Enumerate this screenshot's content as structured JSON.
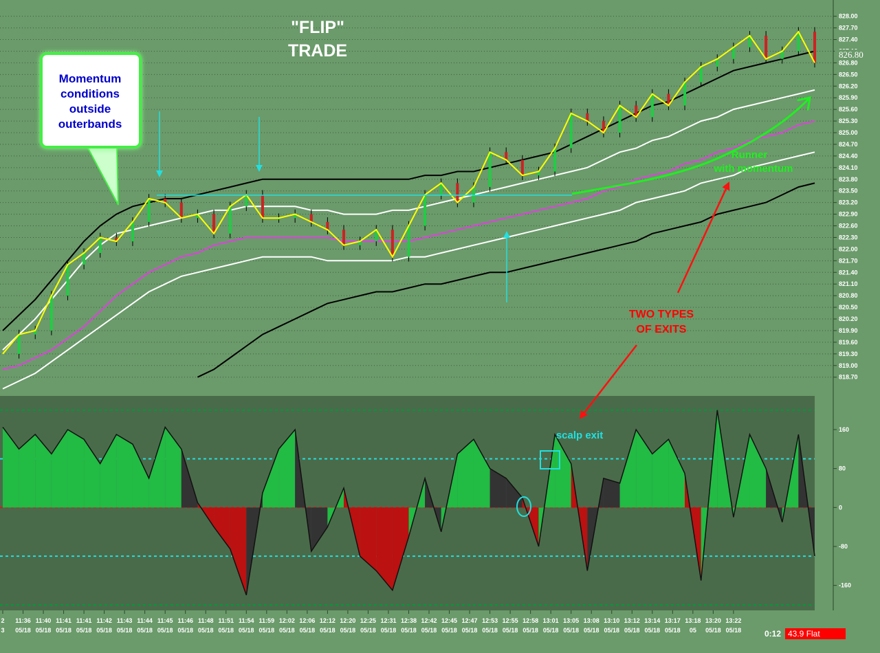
{
  "chart_data": [
    {
      "type": "line",
      "panel": "price",
      "title": "\"FLIP\" TRADE",
      "title_lines": [
        "\"FLIP\"",
        "TRADE"
      ],
      "xlabel": "",
      "ylabel": "",
      "ylim": [
        818.5,
        828.1
      ],
      "y_ticks": [
        828.0,
        827.7,
        827.4,
        827.1,
        826.8,
        826.5,
        826.2,
        825.9,
        825.6,
        825.3,
        825.0,
        824.7,
        824.4,
        824.1,
        823.8,
        823.5,
        823.2,
        822.9,
        822.6,
        822.3,
        822.0,
        821.7,
        821.4,
        821.1,
        820.8,
        820.5,
        820.2,
        819.9,
        819.6,
        819.3,
        819.0,
        818.7
      ],
      "y_tick_labels": [
        "828.00",
        "827.70",
        "827.40",
        "827.10",
        "826.80",
        "826.50",
        "826.20",
        "825.90",
        "825.60",
        "825.30",
        "825.00",
        "824.70",
        "824.40",
        "824.10",
        "823.80",
        "823.50",
        "823.20",
        "822.90",
        "822.60",
        "822.30",
        "822.00",
        "821.70",
        "821.40",
        "821.10",
        "820.80",
        "820.50",
        "820.20",
        "819.90",
        "819.60",
        "819.30",
        "819.00",
        "818.70"
      ],
      "last_price_label": "826.80",
      "grid": true,
      "x": [
        0,
        4,
        8,
        12,
        16,
        20,
        24,
        28,
        32,
        36,
        40,
        44,
        48,
        52,
        56,
        60,
        64,
        68,
        72,
        76,
        80,
        84,
        88,
        92,
        96,
        100,
        104,
        108,
        112,
        116,
        120,
        124,
        128,
        132,
        136,
        140,
        144,
        148,
        152,
        156,
        160,
        164,
        168,
        172,
        176,
        180,
        184,
        188,
        192,
        196,
        200
      ],
      "series": [
        {
          "role": "price",
          "color": "#ffff00",
          "values": [
            819.3,
            819.8,
            819.9,
            820.8,
            821.6,
            821.9,
            822.3,
            822.2,
            822.7,
            823.3,
            823.2,
            822.8,
            822.9,
            822.4,
            823.1,
            823.4,
            822.8,
            822.8,
            822.9,
            822.7,
            822.5,
            822.1,
            822.2,
            822.5,
            821.8,
            822.6,
            823.4,
            823.7,
            823.2,
            823.6,
            824.5,
            824.3,
            823.9,
            824.0,
            824.6,
            825.5,
            825.3,
            825.0,
            825.7,
            825.4,
            826.0,
            825.7,
            826.3,
            826.7,
            826.9,
            827.2,
            827.5,
            826.9,
            827.1,
            827.6,
            826.8
          ]
        },
        {
          "role": "upper-outer-band",
          "color": "#000000",
          "values": [
            819.9,
            820.3,
            820.7,
            821.2,
            821.7,
            822.2,
            822.6,
            822.9,
            823.1,
            823.2,
            823.3,
            823.3,
            823.4,
            823.5,
            823.6,
            823.7,
            823.8,
            823.8,
            823.8,
            823.8,
            823.8,
            823.8,
            823.8,
            823.8,
            823.8,
            823.8,
            823.9,
            823.9,
            824.0,
            824.0,
            824.1,
            824.2,
            824.3,
            824.4,
            824.5,
            824.7,
            824.9,
            825.1,
            825.3,
            825.5,
            825.7,
            825.8,
            826.0,
            826.2,
            826.4,
            826.6,
            826.7,
            826.8,
            826.9,
            827.0,
            827.1
          ]
        },
        {
          "role": "upper-inner-band",
          "color": "#ffffff",
          "values": [
            819.4,
            819.8,
            820.2,
            820.7,
            821.2,
            821.7,
            822.1,
            822.4,
            822.5,
            822.6,
            822.7,
            822.8,
            822.9,
            823.0,
            823.0,
            823.1,
            823.1,
            823.1,
            823.1,
            823.0,
            823.0,
            822.9,
            822.9,
            822.9,
            823.0,
            823.0,
            823.1,
            823.2,
            823.3,
            823.4,
            823.5,
            823.6,
            823.7,
            823.8,
            823.9,
            824.0,
            824.1,
            824.3,
            824.5,
            824.6,
            824.8,
            824.9,
            825.1,
            825.3,
            825.4,
            825.6,
            825.7,
            825.8,
            825.9,
            826.0,
            826.1
          ]
        },
        {
          "role": "midline",
          "color": "#e040e0",
          "values": [
            818.9,
            819.0,
            819.2,
            819.4,
            819.7,
            820.0,
            820.4,
            820.8,
            821.1,
            821.4,
            821.6,
            821.8,
            821.9,
            822.1,
            822.2,
            822.3,
            822.3,
            822.3,
            822.3,
            822.3,
            822.3,
            822.2,
            822.2,
            822.2,
            822.2,
            822.2,
            822.3,
            822.4,
            822.5,
            822.6,
            822.7,
            822.8,
            822.9,
            823.0,
            823.1,
            823.2,
            823.3,
            823.5,
            823.6,
            823.8,
            823.9,
            824.0,
            824.2,
            824.3,
            824.5,
            824.6,
            824.8,
            824.9,
            825.0,
            825.2,
            825.3
          ]
        },
        {
          "role": "lower-inner-band",
          "color": "#ffffff",
          "values": [
            818.4,
            818.6,
            818.8,
            819.1,
            819.4,
            819.7,
            820.0,
            820.3,
            820.6,
            820.9,
            821.1,
            821.3,
            821.4,
            821.5,
            821.6,
            821.7,
            821.8,
            821.8,
            821.8,
            821.8,
            821.7,
            821.7,
            821.7,
            821.7,
            821.7,
            821.8,
            821.8,
            821.9,
            822.0,
            822.1,
            822.2,
            822.3,
            822.4,
            822.5,
            822.6,
            822.7,
            822.8,
            822.9,
            823.0,
            823.2,
            823.3,
            823.4,
            823.5,
            823.7,
            823.8,
            823.9,
            824.1,
            824.2,
            824.3,
            824.4,
            824.5
          ]
        },
        {
          "role": "lower-outer-band",
          "color": "#000000",
          "values": [
            null,
            null,
            null,
            null,
            null,
            null,
            null,
            null,
            null,
            null,
            null,
            null,
            818.7,
            818.9,
            819.2,
            819.5,
            819.8,
            820.0,
            820.2,
            820.4,
            820.6,
            820.7,
            820.8,
            820.9,
            820.9,
            821.0,
            821.1,
            821.1,
            821.2,
            821.3,
            821.4,
            821.4,
            821.5,
            821.6,
            821.7,
            821.8,
            821.9,
            822.0,
            822.1,
            822.2,
            822.4,
            822.5,
            822.6,
            822.7,
            822.9,
            823.0,
            823.1,
            823.2,
            823.4,
            823.6,
            823.7
          ]
        }
      ],
      "x_tick_labels": [
        {
          "x": 0,
          "time": "2",
          "date": "3"
        },
        {
          "x": 5,
          "time": "11:36",
          "date": "05/18"
        },
        {
          "x": 10,
          "time": "11:40",
          "date": "05/18"
        },
        {
          "x": 15,
          "time": "11:41",
          "date": "05/18"
        },
        {
          "x": 20,
          "time": "11:41",
          "date": "05/18"
        },
        {
          "x": 25,
          "time": "11:42",
          "date": "05/18"
        },
        {
          "x": 30,
          "time": "11:43",
          "date": "05/18"
        },
        {
          "x": 35,
          "time": "11:44",
          "date": "05/18"
        },
        {
          "x": 40,
          "time": "11:45",
          "date": "05/18"
        },
        {
          "x": 45,
          "time": "11:46",
          "date": "05/18"
        },
        {
          "x": 50,
          "time": "11:48",
          "date": "05/18"
        },
        {
          "x": 55,
          "time": "11:51",
          "date": "05/18"
        },
        {
          "x": 60,
          "time": "11:54",
          "date": "05/18"
        },
        {
          "x": 65,
          "time": "11:59",
          "date": "05/18"
        },
        {
          "x": 70,
          "time": "12:02",
          "date": "05/18"
        },
        {
          "x": 75,
          "time": "12:06",
          "date": "05/18"
        },
        {
          "x": 80,
          "time": "12:12",
          "date": "05/18"
        },
        {
          "x": 85,
          "time": "12:20",
          "date": "05/18"
        },
        {
          "x": 90,
          "time": "12:25",
          "date": "05/18"
        },
        {
          "x": 95,
          "time": "12:31",
          "date": "05/18"
        },
        {
          "x": 100,
          "time": "12:38",
          "date": "05/18"
        },
        {
          "x": 105,
          "time": "12:42",
          "date": "05/18"
        },
        {
          "x": 110,
          "time": "12:45",
          "date": "05/18"
        },
        {
          "x": 115,
          "time": "12:47",
          "date": "05/18"
        },
        {
          "x": 120,
          "time": "12:53",
          "date": "05/18"
        },
        {
          "x": 125,
          "time": "12:55",
          "date": "05/18"
        },
        {
          "x": 130,
          "time": "12:58",
          "date": "05/18"
        },
        {
          "x": 135,
          "time": "13:01",
          "date": "05/18"
        },
        {
          "x": 140,
          "time": "13:05",
          "date": "05/18"
        },
        {
          "x": 145,
          "time": "13:08",
          "date": "05/18"
        },
        {
          "x": 150,
          "time": "13:10",
          "date": "05/18"
        },
        {
          "x": 155,
          "time": "13:12",
          "date": "05/18"
        },
        {
          "x": 160,
          "time": "13:14",
          "date": "05/18"
        },
        {
          "x": 165,
          "time": "13:17",
          "date": "05/18"
        },
        {
          "x": 170,
          "time": "13:18",
          "date": "05"
        },
        {
          "x": 175,
          "time": "13:20",
          "date": "05/18"
        },
        {
          "x": 180,
          "time": "13:22",
          "date": "05/18"
        }
      ],
      "annotations": [
        {
          "id": "momentum-callout",
          "lines": [
            "Momentum",
            "conditions",
            "outside",
            "outerbands"
          ],
          "color": "#0000cc"
        },
        {
          "id": "runner-label",
          "lines": [
            "Runner",
            "with momentum"
          ],
          "color": "#22ee22"
        },
        {
          "id": "two-types-label",
          "lines": [
            "TWO TYPES",
            "OF EXITS"
          ],
          "color": "#ff0000"
        }
      ],
      "resistance_level": 823.5
    },
    {
      "type": "area",
      "panel": "momentum-oscillator",
      "ylim": [
        -200,
        215
      ],
      "y_ticks": [
        160,
        80,
        0,
        -80,
        -160
      ],
      "y_tick_labels": [
        "160",
        "80",
        "0",
        "-80",
        "-160"
      ],
      "reference_lines": [
        {
          "value": 200,
          "color": "#009a3a",
          "style": "dashed"
        },
        {
          "value": 100,
          "color": "#ffffff",
          "style": "dashed-cyan"
        },
        {
          "value": 0,
          "color": "#cc2020",
          "style": "dashed-red"
        },
        {
          "value": -100,
          "color": "#ffffff",
          "style": "dashed-cyan"
        },
        {
          "value": -200,
          "color": "#009a3a",
          "style": "dashed"
        }
      ],
      "x": [
        0,
        4,
        8,
        12,
        16,
        20,
        24,
        28,
        32,
        36,
        40,
        44,
        48,
        52,
        56,
        60,
        64,
        68,
        72,
        76,
        80,
        84,
        88,
        92,
        96,
        100,
        104,
        108,
        112,
        116,
        120,
        124,
        128,
        132,
        136,
        140,
        144,
        148,
        152,
        156,
        160,
        164,
        168,
        172,
        176,
        180,
        184,
        188,
        192,
        196,
        200
      ],
      "values": [
        165,
        120,
        150,
        110,
        160,
        140,
        90,
        150,
        130,
        60,
        165,
        120,
        10,
        -40,
        -85,
        -180,
        30,
        120,
        160,
        -90,
        -40,
        40,
        -100,
        -130,
        -170,
        -60,
        60,
        -50,
        110,
        140,
        80,
        60,
        20,
        -80,
        150,
        90,
        -130,
        60,
        50,
        160,
        110,
        140,
        70,
        -150,
        200,
        -20,
        150,
        80,
        -30,
        150,
        -100
      ],
      "signal_events": [
        {
          "id": "scalp-exit",
          "label": "scalp exit",
          "value": 110
        }
      ],
      "colors": {
        "positive": "#22bb44",
        "negative": "#bb1111",
        "fade": "#333333",
        "signal": "#ccbb44"
      }
    }
  ],
  "status_bar": {
    "clock": "0:12",
    "readout": "43.9 Flat",
    "readout_bg": "#ff0000"
  }
}
